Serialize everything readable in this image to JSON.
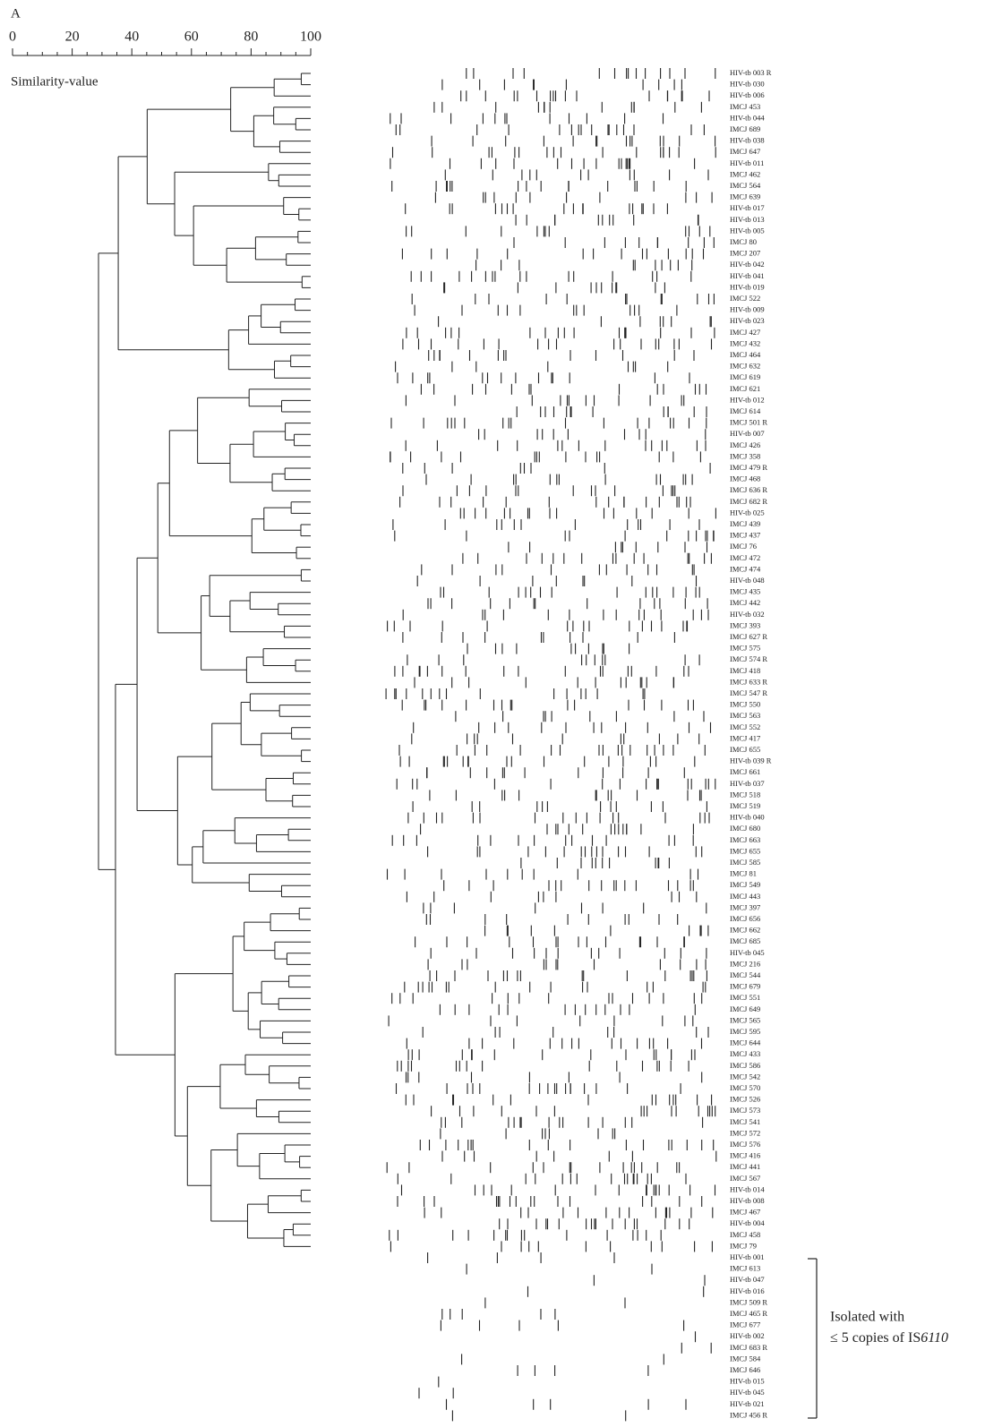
{
  "panel_label": "A",
  "scale": {
    "ticks": [
      0,
      20,
      40,
      60,
      80,
      100
    ],
    "label": "Similarity-value"
  },
  "isolates": [
    "HIV-tb 003 R",
    "HIV-tb 030",
    "HIV-tb 006",
    "IMCJ 453",
    "HIV-tb 044",
    "IMCJ 689",
    "HIV-tb 038",
    "IMCJ 647",
    "HIV-tb 011",
    "IMCJ 462",
    "IMCJ 564",
    "IMCJ 639",
    "HIV-tb 017",
    "HIV-tb 013",
    "HIV-tb 005",
    "IMCJ 80",
    "IMCJ 207",
    "HIV-tb 042",
    "HIV-tb 041",
    "HIV-tb 019",
    "IMCJ 522",
    "HIV-tb 009",
    "HIV-tb 023",
    "IMCJ 427",
    "IMCJ 432",
    "IMCJ 464",
    "IMCJ 632",
    "IMCJ 619",
    "IMCJ 621",
    "HIV-tb 012",
    "IMCJ 614",
    "IMCJ 501 R",
    "HIV-tb 007",
    "IMCJ 426",
    "IMCJ 358",
    "IMCJ 479 R",
    "IMCJ 468",
    "IMCJ 636 R",
    "IMCJ 682 R",
    "HIV-tb 025",
    "IMCJ 439",
    "IMCJ 437",
    "IMCJ 76",
    "IMCJ 472",
    "IMCJ 474",
    "HIV-tb 048",
    "IMCJ 435",
    "IMCJ 442",
    "HIV-tb 032",
    "IMCJ 393",
    "IMCJ 627 R",
    "IMCJ 575",
    "IMCJ 574 R",
    "IMCJ 418",
    "IMCJ 633 R",
    "IMCJ 547 R",
    "IMCJ 550",
    "IMCJ 563",
    "IMCJ 552",
    "IMCJ 417",
    "IMCJ 655",
    "HIV-tb 039 R",
    "IMCJ 661",
    "HIV-tb 037",
    "IMCJ 518",
    "IMCJ 519",
    "HIV-tb 040",
    "IMCJ 680",
    "IMCJ 663",
    "IMCJ 655",
    "IMCJ 585",
    "IMCJ 81",
    "IMCJ 549",
    "IMCJ 443",
    "IMCJ 397",
    "IMCJ 656",
    "IMCJ 662",
    "IMCJ 685",
    "HIV-tb 045",
    "IMCJ 216",
    "IMCJ 544",
    "IMCJ 679",
    "IMCJ 551",
    "IMCJ 649",
    "IMCJ 565",
    "IMCJ 595",
    "IMCJ 644",
    "IMCJ 433",
    "IMCJ 586",
    "IMCJ 542",
    "IMCJ 570",
    "IMCJ 526",
    "IMCJ 573",
    "IMCJ 541",
    "IMCJ 572",
    "IMCJ 576",
    "IMCJ 416",
    "IMCJ 441",
    "IMCJ 567",
    "HIV-tb 014",
    "HIV-tb 008",
    "IMCJ 467",
    "HIV-tb 004",
    "IMCJ 458",
    "IMCJ 79"
  ],
  "low_copy_isolates": [
    "HIV-tb 001",
    "IMCJ 613",
    "HIV-tb 047",
    "HIV-tb 016",
    "IMCJ 509 R",
    "IMCJ 465 R",
    "IMCJ 677",
    "HIV-tb 002",
    "IMCJ 683 R",
    "IMCJ 584",
    "IMCJ 646",
    "HIV-tb 015",
    "HIV-tb 045",
    "HIV-tb 021",
    "IMCJ 456 R"
  ],
  "annotation": {
    "line1": "Isolated with",
    "line2": "≤ 5 copies of IS",
    "line2_italic": "6110"
  }
}
